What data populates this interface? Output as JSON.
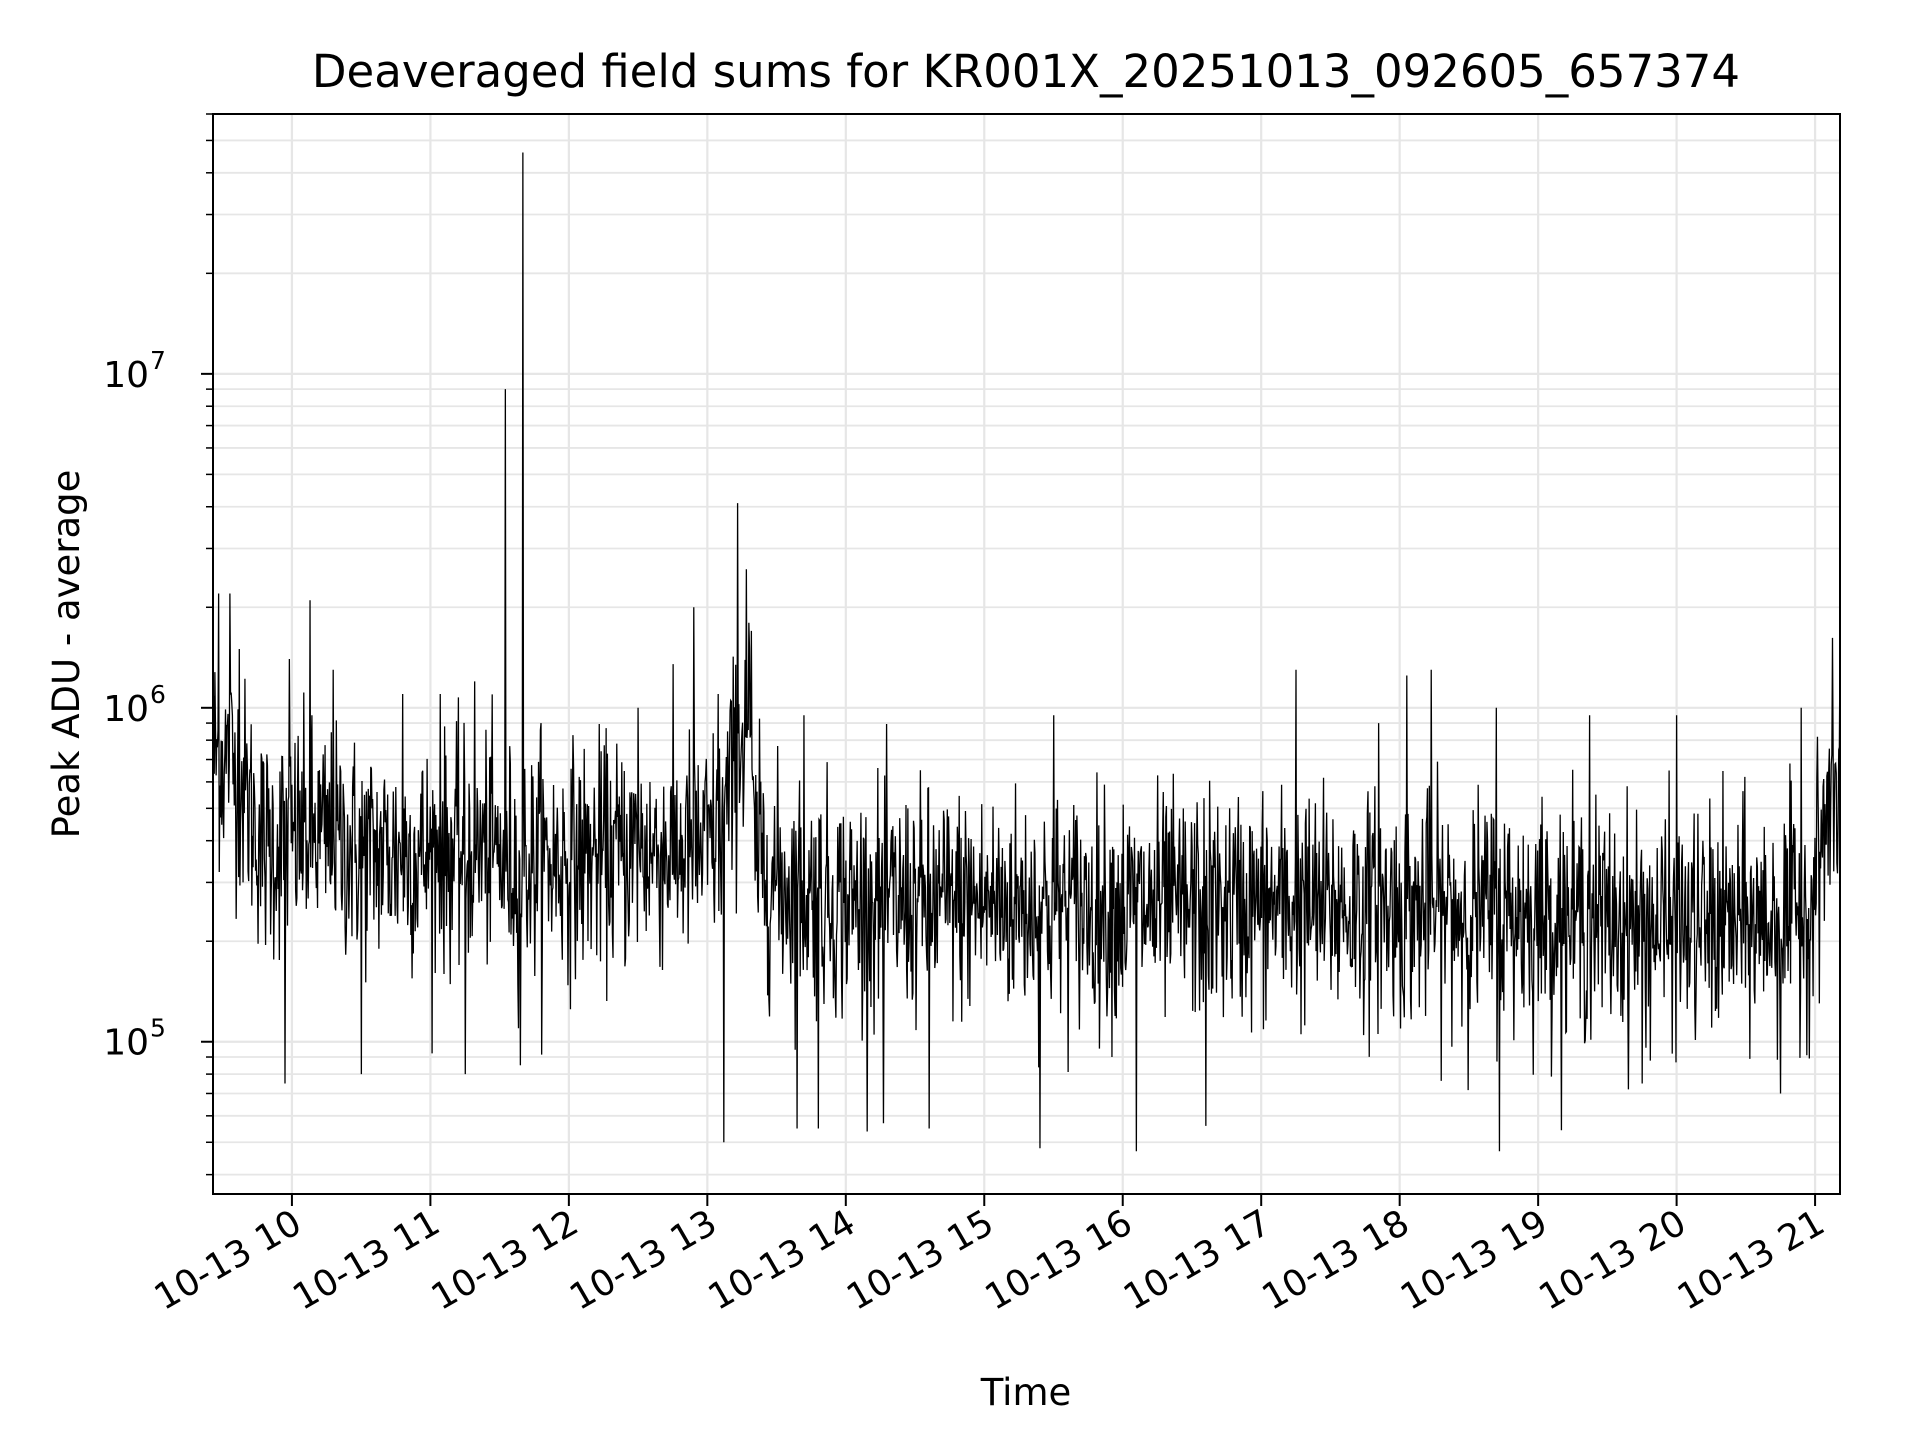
{
  "chart_data": {
    "type": "line",
    "title": "Deaveraged field sums for KR001X_20251013_092605_657374",
    "xlabel": "Time",
    "ylabel": "Peak ADU - average",
    "x_range_hours": [
      9.43,
      21.18
    ],
    "y_scale": "log",
    "ylim": [
      35000,
      60000000
    ],
    "grid": true,
    "line_color": "#000000",
    "grid_color": "#e6e6e6",
    "x_ticks": [
      {
        "hour": 10,
        "label": "10-13 10"
      },
      {
        "hour": 11,
        "label": "10-13 11"
      },
      {
        "hour": 12,
        "label": "10-13 12"
      },
      {
        "hour": 13,
        "label": "10-13 13"
      },
      {
        "hour": 14,
        "label": "10-13 14"
      },
      {
        "hour": 15,
        "label": "10-13 15"
      },
      {
        "hour": 16,
        "label": "10-13 16"
      },
      {
        "hour": 17,
        "label": "10-13 17"
      },
      {
        "hour": 18,
        "label": "10-13 18"
      },
      {
        "hour": 19,
        "label": "10-13 19"
      },
      {
        "hour": 20,
        "label": "10-13 20"
      },
      {
        "hour": 21,
        "label": "10-13 21"
      }
    ],
    "y_ticks": [
      {
        "value": 100000,
        "base": "10",
        "exp": "5"
      },
      {
        "value": 1000000,
        "base": "10",
        "exp": "6"
      },
      {
        "value": 10000000,
        "base": "10",
        "exp": "7"
      }
    ],
    "series": [
      {
        "name": "Deaveraged field sum",
        "baseline_profile": [
          [
            9.43,
            750000
          ],
          [
            9.6,
            650000
          ],
          [
            9.8,
            380000
          ],
          [
            10.1,
            420000
          ],
          [
            10.5,
            370000
          ],
          [
            11.0,
            360000
          ],
          [
            11.4,
            380000
          ],
          [
            11.6,
            340000
          ],
          [
            12.0,
            350000
          ],
          [
            12.5,
            370000
          ],
          [
            13.0,
            380000
          ],
          [
            13.1,
            430000
          ],
          [
            13.3,
            1000000
          ],
          [
            13.33,
            380000
          ],
          [
            13.5,
            300000
          ],
          [
            14.0,
            260000
          ],
          [
            15.0,
            260000
          ],
          [
            16.0,
            250000
          ],
          [
            17.0,
            255000
          ],
          [
            18.0,
            250000
          ],
          [
            19.0,
            240000
          ],
          [
            19.5,
            230000
          ],
          [
            20.0,
            220000
          ],
          [
            20.5,
            225000
          ],
          [
            20.95,
            240000
          ],
          [
            21.1,
            500000
          ],
          [
            21.18,
            560000
          ]
        ],
        "spikes": [
          [
            9.47,
            2200000
          ],
          [
            9.55,
            2200000
          ],
          [
            9.62,
            1500000
          ],
          [
            9.98,
            1400000
          ],
          [
            10.13,
            2100000
          ],
          [
            10.3,
            1300000
          ],
          [
            10.8,
            1100000
          ],
          [
            11.07,
            1100000
          ],
          [
            11.32,
            1200000
          ],
          [
            11.54,
            9000000
          ],
          [
            11.67,
            46000000
          ],
          [
            11.8,
            900000
          ],
          [
            12.5,
            1000000
          ],
          [
            12.9,
            2000000
          ],
          [
            13.08,
            1100000
          ],
          [
            13.22,
            4100000
          ],
          [
            13.28,
            2600000
          ],
          [
            13.32,
            1700000
          ],
          [
            13.7,
            950000
          ],
          [
            15.5,
            950000
          ],
          [
            17.25,
            1300000
          ],
          [
            17.85,
            900000
          ],
          [
            18.05,
            1250000
          ],
          [
            18.23,
            1300000
          ],
          [
            18.7,
            1000000
          ],
          [
            19.37,
            950000
          ],
          [
            20.0,
            950000
          ],
          [
            20.9,
            1000000
          ],
          [
            21.18,
            1550000
          ]
        ],
        "dips": [
          [
            9.95,
            75000
          ],
          [
            10.5,
            80000
          ],
          [
            11.25,
            80000
          ],
          [
            11.65,
            85000
          ],
          [
            13.12,
            50000
          ],
          [
            13.65,
            55000
          ],
          [
            13.8,
            55000
          ],
          [
            14.27,
            57000
          ],
          [
            14.6,
            55000
          ],
          [
            15.4,
            48000
          ],
          [
            16.1,
            47000
          ],
          [
            16.6,
            56000
          ],
          [
            18.72,
            47000
          ],
          [
            19.75,
            75000
          ],
          [
            20.75,
            70000
          ]
        ],
        "noise_log10_sd": 0.17,
        "samples": 2600
      }
    ]
  }
}
